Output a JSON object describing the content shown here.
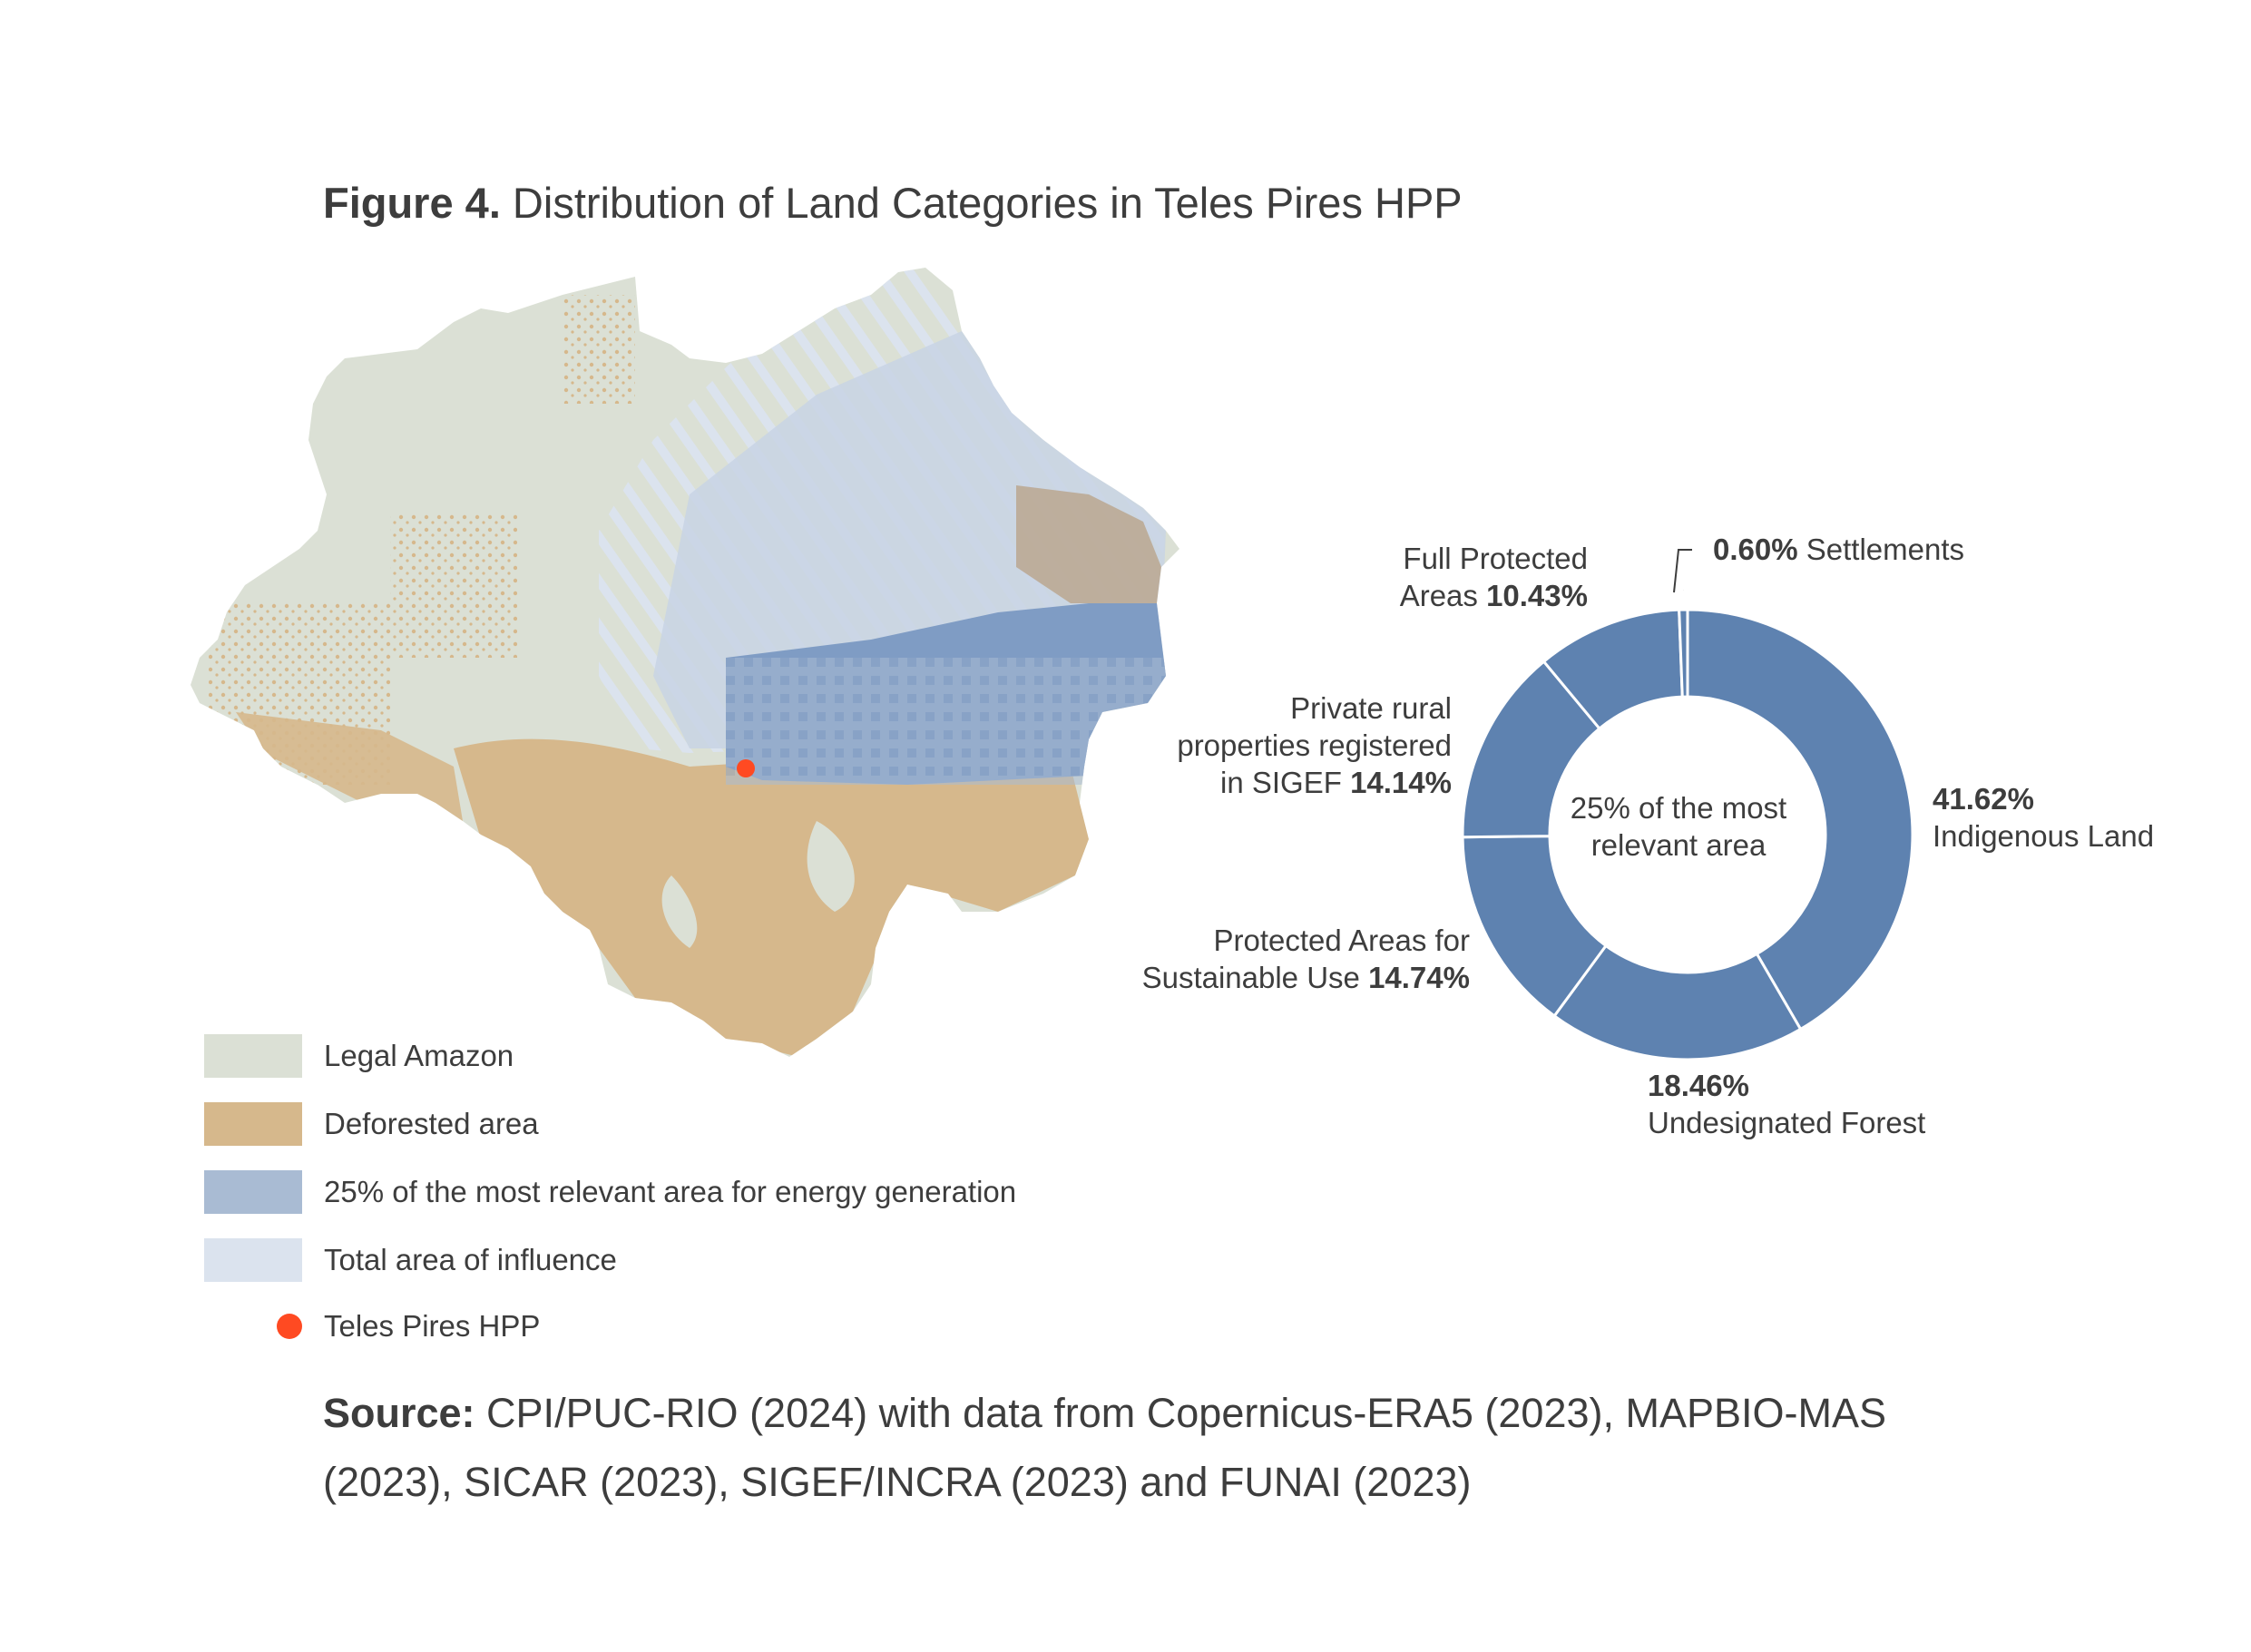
{
  "figure": {
    "title_bold": "Figure 4.",
    "title_text": " Distribution of Land Categories in Teles Pires HPP"
  },
  "legend": {
    "items": [
      {
        "label": "Legal Amazon",
        "color": "#dbe0d5",
        "kind": "swatch"
      },
      {
        "label": "Deforested area",
        "color": "#d6b88c",
        "kind": "swatch"
      },
      {
        "label": "25% of the most relevant area for energy generation",
        "color": "#a9bbd3",
        "kind": "swatch"
      },
      {
        "label": "Total area of influence",
        "color": "#dbe3ee",
        "kind": "swatch"
      },
      {
        "label": "Teles Pires HPP",
        "color": "#ff4a22",
        "kind": "dot"
      }
    ]
  },
  "chart_data": {
    "type": "pie",
    "donut": true,
    "center_text": "25% of the most relevant area",
    "color": "#5e82b0",
    "slices": [
      {
        "name": "Indigenous Land",
        "value": 41.62,
        "value_text": "41.62%"
      },
      {
        "name": "Undesignated Forest",
        "value": 18.46,
        "value_text": "18.46%"
      },
      {
        "name": "Protected Areas for Sustainable Use",
        "value": 14.74,
        "value_text": "14.74%"
      },
      {
        "name": "Private rural properties registered in SIGEF",
        "value": 14.14,
        "value_text": "14.14%"
      },
      {
        "name": "Full Protected Areas",
        "value": 10.43,
        "value_text": "10.43%"
      },
      {
        "name": "Settlements",
        "value": 0.6,
        "value_text": "0.60%"
      }
    ]
  },
  "labels": {
    "settlements": {
      "value": "0.60%",
      "text": " Settlements"
    },
    "full_protected": {
      "line1": "Full Protected",
      "line2": "Areas ",
      "value": "10.43%"
    },
    "private_rural": {
      "line1": "Private rural",
      "line2": "properties registered",
      "line3": "in SIGEF ",
      "value": "14.14%"
    },
    "sustainable": {
      "line1": "Protected Areas for",
      "line2": "Sustainable Use ",
      "value": "14.74%"
    },
    "undesignated": {
      "value": "18.46%",
      "text": "Undesignated Forest"
    },
    "indigenous": {
      "value": "41.62%",
      "text": "Indigenous Land"
    }
  },
  "source": {
    "bold": "Source:",
    "text": " CPI/PUC-RIO (2024) with data from Copernicus-ERA5 (2023), MAPBIO-MAS (2023), SICAR (2023), SIGEF/INCRA (2023) and FUNAI (2023)"
  },
  "colors": {
    "legal_amazon": "#dbe0d5",
    "deforested": "#d6b88c",
    "relevant_area": "#a9bbd3",
    "relevant_area_dark": "#6f8fbd",
    "influence": "#dbe3ee",
    "hpp": "#ff4a22",
    "donut": "#5e82b0"
  }
}
